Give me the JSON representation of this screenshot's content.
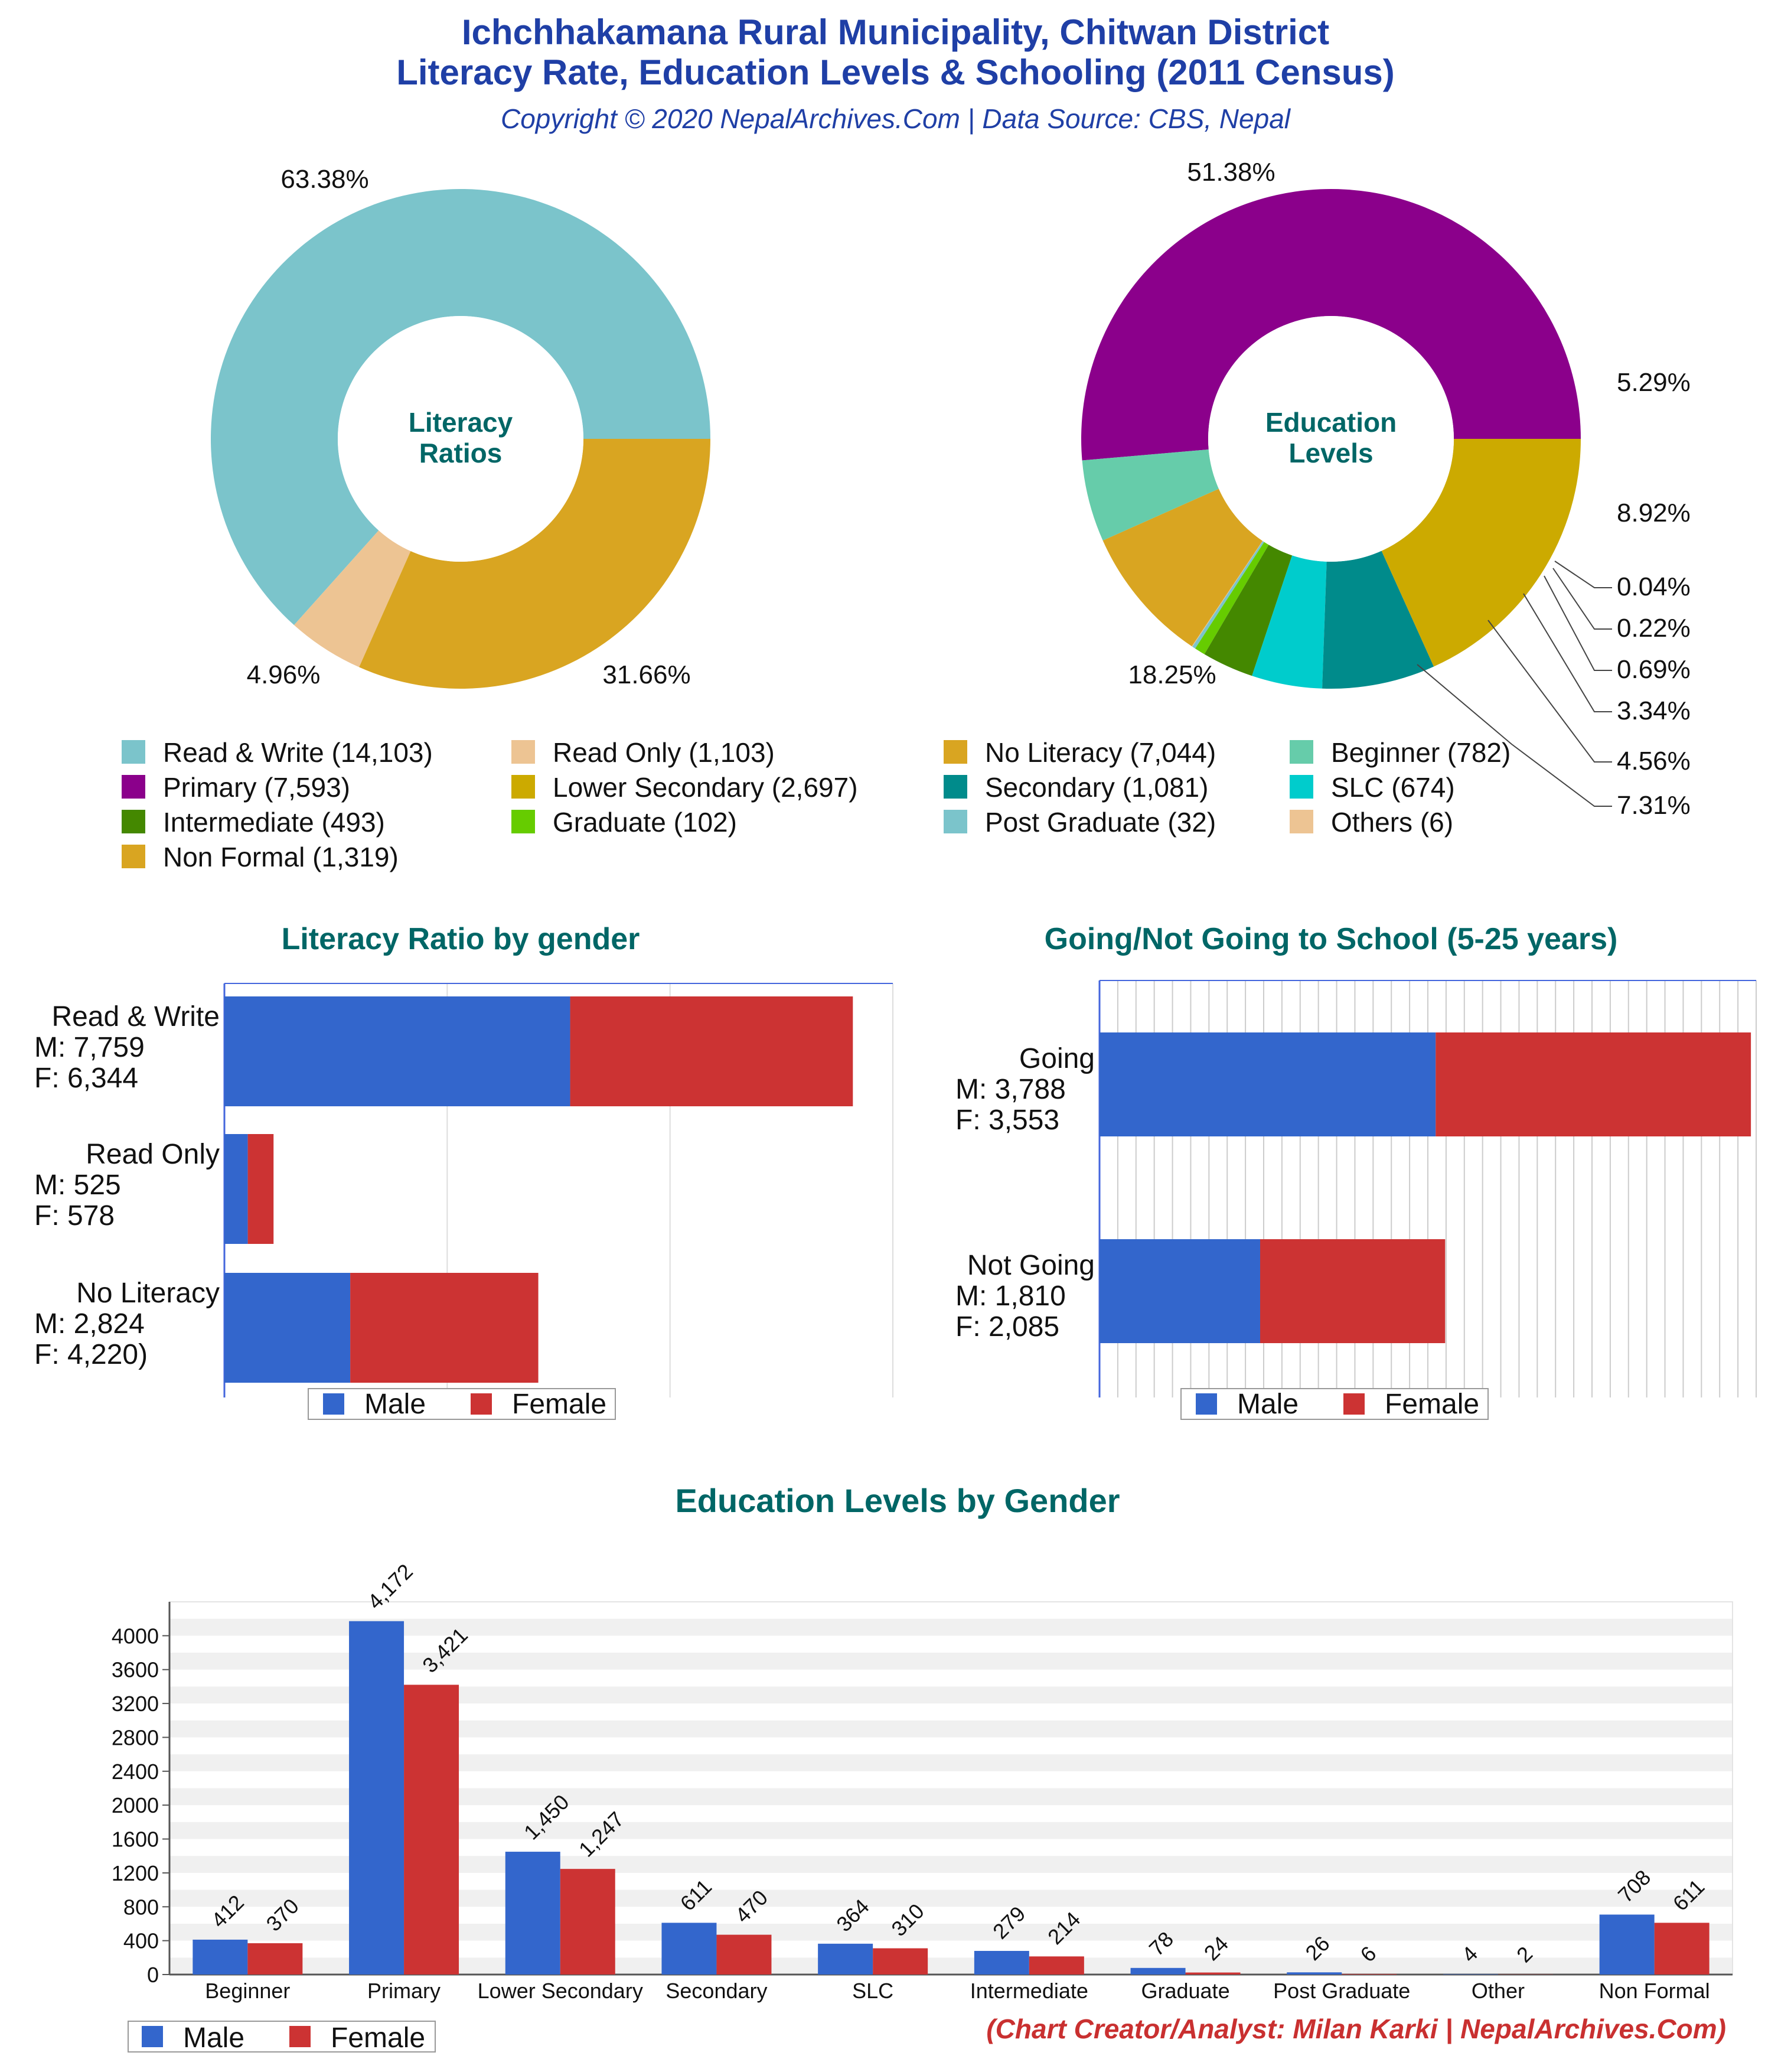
{
  "header": {
    "title_line1": "Ichchhakamana Rural Municipality, Chitwan District",
    "title_line2": "Literacy Rate, Education Levels & Schooling (2011 Census)",
    "subtitle": "Copyright © 2020 NepalArchives.Com | Data Source: CBS, Nepal"
  },
  "footer": "(Chart Creator/Analyst: Milan Karki | NepalArchives.Com)",
  "colors": {
    "male": "#3366cc",
    "female": "#cc3333",
    "title_teal": "#006666"
  },
  "chart_data": [
    {
      "type": "pie",
      "title": "Literacy Ratios",
      "title_lines": [
        "Literacy",
        "Ratios"
      ],
      "slices": [
        {
          "name": "Read & Write",
          "value": 14103,
          "label": "63.38%",
          "color": "#7bc4cb"
        },
        {
          "name": "Read Only",
          "value": 1103,
          "label": "4.96%",
          "color": "#edc493"
        },
        {
          "name": "No Literacy",
          "value": 7044,
          "label": "31.66%",
          "color": "#d9a521"
        }
      ]
    },
    {
      "type": "pie",
      "title": "Education Levels",
      "title_lines": [
        "Education",
        "Levels"
      ],
      "slices": [
        {
          "name": "Primary",
          "value": 7593,
          "label": "51.38%",
          "color": "#8b008b"
        },
        {
          "name": "Beginner",
          "value": 782,
          "label": "5.29%",
          "color": "#66ccaa"
        },
        {
          "name": "Non Formal",
          "value": 1319,
          "label": "8.92%",
          "color": "#d9a521"
        },
        {
          "name": "Others",
          "value": 6,
          "label": "0.04%",
          "color": "#edc493"
        },
        {
          "name": "Post Graduate",
          "value": 32,
          "label": "0.22%",
          "color": "#7bc4cb"
        },
        {
          "name": "Graduate",
          "value": 102,
          "label": "0.69%",
          "color": "#66cc00"
        },
        {
          "name": "Intermediate",
          "value": 493,
          "label": "3.34%",
          "color": "#448800"
        },
        {
          "name": "SLC",
          "value": 674,
          "label": "4.56%",
          "color": "#00cccc"
        },
        {
          "name": "Secondary",
          "value": 1081,
          "label": "7.31%",
          "color": "#008b8b"
        },
        {
          "name": "Lower Secondary",
          "value": 2697,
          "label": "18.25%",
          "color": "#ccaa00"
        }
      ]
    },
    {
      "type": "bar",
      "orientation": "horizontal-stacked",
      "title": "Literacy Ratio by gender",
      "xlim": [
        0,
        15000
      ],
      "categories": [
        {
          "lines": [
            "Read & Write",
            "M: 7,759",
            "F: 6,344"
          ]
        },
        {
          "lines": [
            "Read Only",
            "M: 525",
            "F: 578"
          ]
        },
        {
          "lines": [
            "No Literacy",
            "M: 2,824",
            "F: 4,220)"
          ]
        }
      ],
      "series": [
        {
          "name": "Male",
          "values": [
            7759,
            525,
            2824
          ]
        },
        {
          "name": "Female",
          "values": [
            6344,
            578,
            4220
          ]
        }
      ],
      "legend": "bottom"
    },
    {
      "type": "bar",
      "orientation": "horizontal-stacked",
      "title": "Going/Not Going to School (5-25 years)",
      "xlim": [
        0,
        7400
      ],
      "categories": [
        {
          "lines": [
            "Going",
            "M: 3,788",
            "F: 3,553"
          ]
        },
        {
          "lines": [
            "Not Going",
            "M: 1,810",
            "F: 2,085"
          ]
        }
      ],
      "series": [
        {
          "name": "Male",
          "values": [
            3788,
            1810
          ]
        },
        {
          "name": "Female",
          "values": [
            3553,
            2085
          ]
        }
      ],
      "legend": "bottom"
    },
    {
      "type": "bar",
      "title": "Education Levels by Gender",
      "ylim": [
        0,
        4400
      ],
      "yticks": [
        0,
        400,
        800,
        1200,
        1600,
        2000,
        2400,
        2800,
        3200,
        3600,
        4000
      ],
      "categories": [
        "Beginner",
        "Primary",
        "Lower Secondary",
        "Secondary",
        "SLC",
        "Intermediate",
        "Graduate",
        "Post Graduate",
        "Other",
        "Non Formal"
      ],
      "series": [
        {
          "name": "Male",
          "values": [
            412,
            4172,
            1450,
            611,
            364,
            279,
            78,
            26,
            4,
            708
          ],
          "labels": [
            "412",
            "4,172",
            "1,450",
            "611",
            "364",
            "279",
            "78",
            "26",
            "4",
            "708"
          ]
        },
        {
          "name": "Female",
          "values": [
            370,
            3421,
            1247,
            470,
            310,
            214,
            24,
            6,
            2,
            611
          ],
          "labels": [
            "370",
            "3,421",
            "1,247",
            "470",
            "310",
            "214",
            "24",
            "6",
            "2",
            "611"
          ]
        }
      ],
      "legend": "bottom-left"
    }
  ],
  "pie_legend": [
    {
      "label": "Read & Write (14,103)",
      "color": "#7bc4cb"
    },
    {
      "label": "Read Only (1,103)",
      "color": "#edc493"
    },
    {
      "label": "No Literacy (7,044)",
      "color": "#d9a521"
    },
    {
      "label": "Beginner (782)",
      "color": "#66ccaa"
    },
    {
      "label": "Primary (7,593)",
      "color": "#8b008b"
    },
    {
      "label": "Lower Secondary (2,697)",
      "color": "#ccaa00"
    },
    {
      "label": "Secondary (1,081)",
      "color": "#008b8b"
    },
    {
      "label": "SLC (674)",
      "color": "#00cccc"
    },
    {
      "label": "Intermediate (493)",
      "color": "#448800"
    },
    {
      "label": "Graduate (102)",
      "color": "#66cc00"
    },
    {
      "label": "Post Graduate (32)",
      "color": "#7bc4cb"
    },
    {
      "label": "Others (6)",
      "color": "#edc493"
    },
    {
      "label": "Non Formal (1,319)",
      "color": "#d9a521"
    }
  ]
}
